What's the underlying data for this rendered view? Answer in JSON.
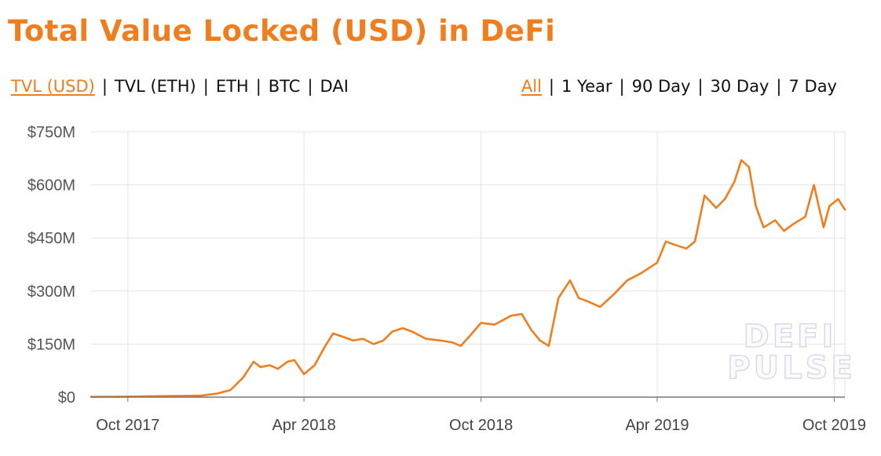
{
  "title": "Total Value Locked (USD) in DeFi",
  "metric_tabs": [
    {
      "label": "TVL (USD)",
      "active": true
    },
    {
      "label": "TVL (ETH)",
      "active": false
    },
    {
      "label": "ETH",
      "active": false
    },
    {
      "label": "BTC",
      "active": false
    },
    {
      "label": "DAI",
      "active": false
    }
  ],
  "range_tabs": [
    {
      "label": "All",
      "active": true
    },
    {
      "label": "1 Year",
      "active": false
    },
    {
      "label": "90 Day",
      "active": false
    },
    {
      "label": "30 Day",
      "active": false
    },
    {
      "label": "7 Day",
      "active": false
    }
  ],
  "watermark": [
    "DEFI",
    "PULSE"
  ],
  "colors": {
    "accent": "#f07d1e",
    "grid": "#e3e3e3",
    "axis": "#777777"
  },
  "chart_data": {
    "type": "line",
    "title": "Total Value Locked (USD) in DeFi",
    "xlabel": "",
    "ylabel": "",
    "x_ticks": [
      "Oct 2017",
      "Apr 2018",
      "Oct 2018",
      "Apr 2019",
      "Oct 2019"
    ],
    "x_tick_dates": [
      "2017-10-01",
      "2018-04-01",
      "2018-10-01",
      "2019-04-01",
      "2019-10-01"
    ],
    "y_ticks": [
      "$0",
      "$150M",
      "$300M",
      "$450M",
      "$600M",
      "$750M"
    ],
    "ylim": [
      0,
      750
    ],
    "xlim": [
      "2017-08-24",
      "2019-10-12"
    ],
    "grid": true,
    "legend": "none",
    "series": [
      {
        "values_unit": "USD millions",
        "points": [
          [
            "2017-08-24",
            1
          ],
          [
            "2017-09-15",
            1
          ],
          [
            "2017-10-15",
            2
          ],
          [
            "2017-11-15",
            3
          ],
          [
            "2017-12-15",
            4
          ],
          [
            "2018-01-01",
            10
          ],
          [
            "2018-01-15",
            20
          ],
          [
            "2018-01-28",
            55
          ],
          [
            "2018-02-08",
            100
          ],
          [
            "2018-02-15",
            85
          ],
          [
            "2018-02-25",
            90
          ],
          [
            "2018-03-05",
            80
          ],
          [
            "2018-03-15",
            100
          ],
          [
            "2018-03-22",
            105
          ],
          [
            "2018-04-01",
            65
          ],
          [
            "2018-04-12",
            90
          ],
          [
            "2018-04-22",
            140
          ],
          [
            "2018-05-01",
            180
          ],
          [
            "2018-05-12",
            170
          ],
          [
            "2018-05-22",
            160
          ],
          [
            "2018-06-01",
            165
          ],
          [
            "2018-06-12",
            150
          ],
          [
            "2018-06-22",
            160
          ],
          [
            "2018-07-01",
            185
          ],
          [
            "2018-07-12",
            195
          ],
          [
            "2018-07-22",
            185
          ],
          [
            "2018-08-05",
            165
          ],
          [
            "2018-08-20",
            160
          ],
          [
            "2018-09-01",
            155
          ],
          [
            "2018-09-10",
            145
          ],
          [
            "2018-09-20",
            175
          ],
          [
            "2018-10-01",
            210
          ],
          [
            "2018-10-15",
            205
          ],
          [
            "2018-11-01",
            230
          ],
          [
            "2018-11-12",
            235
          ],
          [
            "2018-11-22",
            190
          ],
          [
            "2018-12-01",
            160
          ],
          [
            "2018-12-10",
            145
          ],
          [
            "2018-12-20",
            280
          ],
          [
            "2019-01-01",
            330
          ],
          [
            "2019-01-10",
            280
          ],
          [
            "2019-01-20",
            270
          ],
          [
            "2019-02-01",
            255
          ],
          [
            "2019-02-15",
            290
          ],
          [
            "2019-03-01",
            330
          ],
          [
            "2019-03-15",
            350
          ],
          [
            "2019-04-01",
            380
          ],
          [
            "2019-04-10",
            440
          ],
          [
            "2019-04-20",
            430
          ],
          [
            "2019-05-01",
            420
          ],
          [
            "2019-05-10",
            440
          ],
          [
            "2019-05-20",
            570
          ],
          [
            "2019-06-01",
            535
          ],
          [
            "2019-06-10",
            560
          ],
          [
            "2019-06-20",
            610
          ],
          [
            "2019-06-27",
            670
          ],
          [
            "2019-07-05",
            650
          ],
          [
            "2019-07-12",
            540
          ],
          [
            "2019-07-20",
            480
          ],
          [
            "2019-08-01",
            500
          ],
          [
            "2019-08-10",
            470
          ],
          [
            "2019-08-20",
            490
          ],
          [
            "2019-09-01",
            510
          ],
          [
            "2019-09-10",
            600
          ],
          [
            "2019-09-15",
            540
          ],
          [
            "2019-09-20",
            480
          ],
          [
            "2019-09-26",
            540
          ],
          [
            "2019-10-05",
            560
          ],
          [
            "2019-10-12",
            530
          ]
        ]
      }
    ]
  }
}
